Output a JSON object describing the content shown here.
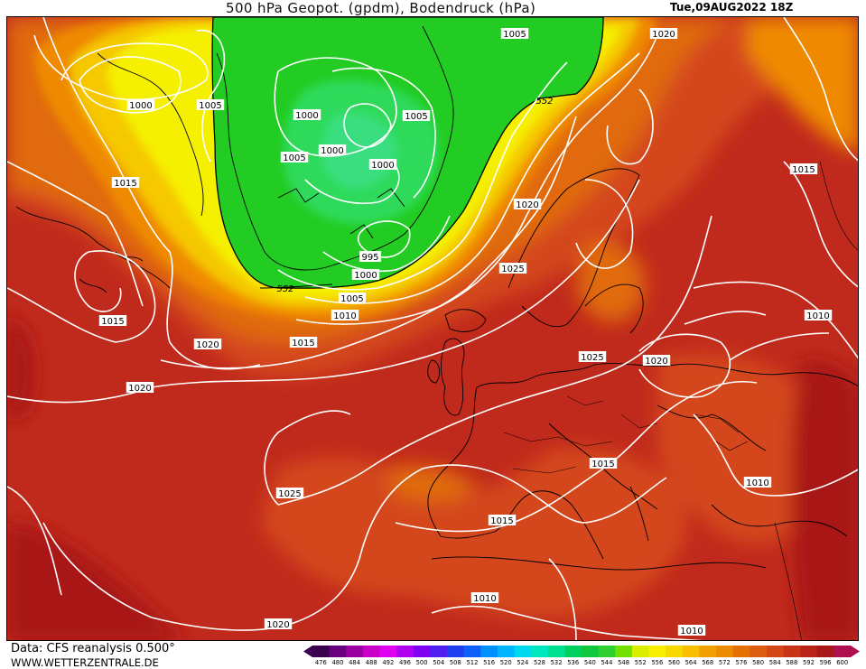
{
  "header": {
    "title": "500 hPa Geopot. (gpdm), Bodendruck (hPa)",
    "datetime": "Tue,09AUG2022  18Z"
  },
  "footer": {
    "data_source": "Data: CFS reanalysis 0.500°",
    "website": "WWW.WETTERZENTRALE.DE"
  },
  "map": {
    "description_type": "500 hPa geopotential shading with surface pressure isobars",
    "geopotential_contour_labels": [
      "552",
      "552"
    ],
    "isobar_labels": [
      "1000",
      "1005",
      "1005",
      "1000",
      "1005",
      "1005",
      "1000",
      "1000",
      "1015",
      "995",
      "1000",
      "1005",
      "1010",
      "1015",
      "1015",
      "1020",
      "1020",
      "1020",
      "1015",
      "1025",
      "1025",
      "1015",
      "1020",
      "1010",
      "1025",
      "1020",
      "1015",
      "1010",
      "1010",
      "1010",
      "1020"
    ],
    "colors": {
      "green": "#22cc22",
      "light_green": "#33dd66",
      "yellow": "#f5f000",
      "gold": "#f5c800",
      "orange": "#ef8a00",
      "dark_orange": "#e06a10",
      "red_orange": "#d4471a",
      "red": "#c02a1c",
      "dark_red": "#a81818"
    }
  },
  "colorbar": {
    "labels": [
      "476",
      "480",
      "484",
      "488",
      "492",
      "496",
      "500",
      "504",
      "508",
      "512",
      "516",
      "520",
      "524",
      "528",
      "532",
      "536",
      "540",
      "544",
      "548",
      "552",
      "556",
      "560",
      "564",
      "568",
      "572",
      "576",
      "580",
      "584",
      "588",
      "592",
      "596",
      "600"
    ],
    "colors": [
      "#3c0050",
      "#6a0080",
      "#9a00a0",
      "#c800c8",
      "#e000f0",
      "#b000f0",
      "#8000f0",
      "#5020f0",
      "#2040f0",
      "#1060f8",
      "#0090ff",
      "#00b4ff",
      "#00d8f0",
      "#00e8c0",
      "#00e090",
      "#00d060",
      "#10c840",
      "#30d030",
      "#70e000",
      "#d8f000",
      "#f8f000",
      "#f8d800",
      "#f8c000",
      "#f0a000",
      "#ec8a00",
      "#e47000",
      "#dc5c10",
      "#d44818",
      "#c83418",
      "#b82418",
      "#a81818",
      "#b01050"
    ]
  }
}
